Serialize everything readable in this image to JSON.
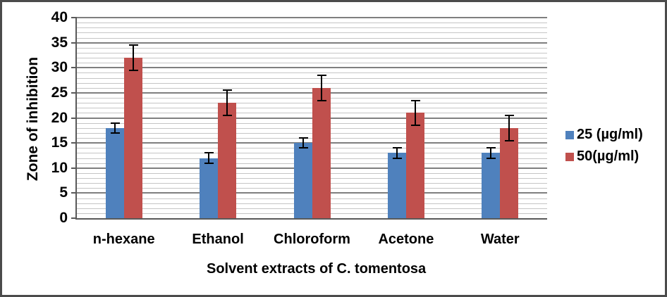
{
  "chart_data": {
    "type": "bar",
    "categories": [
      "n-hexane",
      "Ethanol",
      "Chloroform",
      "Acetone",
      "Water"
    ],
    "series": [
      {
        "name": "25 (µg/ml)",
        "color": "#4f81bd",
        "values": [
          18,
          12,
          15,
          13,
          13
        ],
        "error_bars": [
          1,
          1,
          1,
          1,
          1
        ]
      },
      {
        "name": "50(µg/ml)",
        "color": "#c0504d",
        "values": [
          32,
          23,
          26,
          21,
          18
        ],
        "error_bars": [
          2.5,
          2.5,
          2.5,
          2.5,
          2.5
        ]
      }
    ],
    "xlabel": "Solvent extracts of C. tomentosa",
    "ylabel": "Zone of inhibition",
    "ylim": [
      0,
      40
    ],
    "y_major_step": 5,
    "y_minor_step": 1,
    "y_tick_labels": [
      "0",
      "5",
      "10",
      "15",
      "20",
      "25",
      "30",
      "35",
      "40"
    ],
    "grid": "horizontal, minor every 1, major every 5",
    "legend_position": "right",
    "error_bar_color": "#000000"
  }
}
